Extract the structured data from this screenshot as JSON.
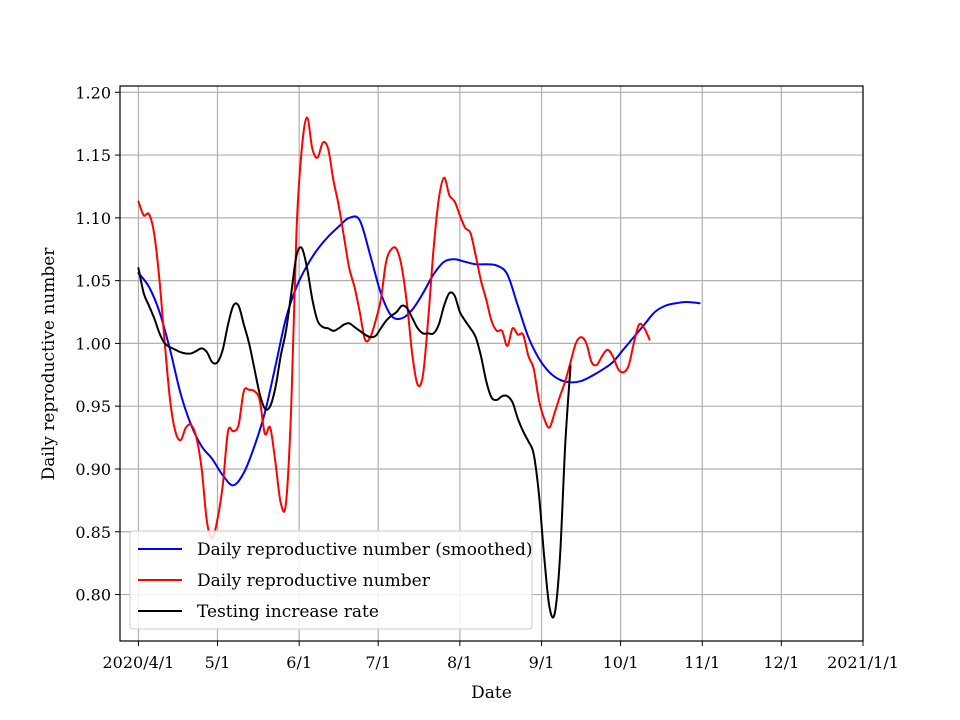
{
  "chart_data": {
    "type": "line",
    "title": "",
    "xlabel": "Date",
    "ylabel": "Daily reproductive number",
    "x_ticks": [
      {
        "date": "2020-04-01",
        "label": "2020/4/1"
      },
      {
        "date": "2020-05-01",
        "label": "5/1"
      },
      {
        "date": "2020-06-01",
        "label": "6/1"
      },
      {
        "date": "2020-07-01",
        "label": "7/1"
      },
      {
        "date": "2020-08-01",
        "label": "8/1"
      },
      {
        "date": "2020-09-01",
        "label": "9/1"
      },
      {
        "date": "2020-10-01",
        "label": "10/1"
      },
      {
        "date": "2020-11-01",
        "label": "11/1"
      },
      {
        "date": "2020-12-01",
        "label": "12/1"
      },
      {
        "date": "2021-01-01",
        "label": "2021/1/1"
      }
    ],
    "xlim": [
      "2020-03-25",
      "2021-01-01"
    ],
    "ylim": [
      0.763,
      1.205
    ],
    "y_ticks": [
      0.8,
      0.85,
      0.9,
      0.95,
      1.0,
      1.05,
      1.1,
      1.15,
      1.2
    ],
    "y_tick_labels": [
      "0.80",
      "0.85",
      "0.90",
      "0.95",
      "1.00",
      "1.05",
      "1.10",
      "1.15",
      "1.20"
    ],
    "grid": true,
    "legend_position": "lower-left",
    "series": [
      {
        "name": "Daily reproductive number (smoothed)",
        "color": "#0000ff",
        "points": [
          [
            "2020-04-01",
            1.056
          ],
          [
            "2020-04-05",
            1.045
          ],
          [
            "2020-04-09",
            1.025
          ],
          [
            "2020-04-13",
            0.995
          ],
          [
            "2020-04-17",
            0.96
          ],
          [
            "2020-04-21",
            0.935
          ],
          [
            "2020-04-25",
            0.918
          ],
          [
            "2020-04-29",
            0.908
          ],
          [
            "2020-05-03",
            0.895
          ],
          [
            "2020-05-07",
            0.887
          ],
          [
            "2020-05-11",
            0.897
          ],
          [
            "2020-05-15",
            0.918
          ],
          [
            "2020-05-19",
            0.945
          ],
          [
            "2020-05-23",
            0.982
          ],
          [
            "2020-05-27",
            1.02
          ],
          [
            "2020-05-31",
            1.045
          ],
          [
            "2020-06-04",
            1.062
          ],
          [
            "2020-06-08",
            1.075
          ],
          [
            "2020-06-12",
            1.085
          ],
          [
            "2020-06-16",
            1.093
          ],
          [
            "2020-06-20",
            1.1
          ],
          [
            "2020-06-24",
            1.098
          ],
          [
            "2020-06-28",
            1.07
          ],
          [
            "2020-07-02",
            1.04
          ],
          [
            "2020-07-06",
            1.022
          ],
          [
            "2020-07-10",
            1.02
          ],
          [
            "2020-07-14",
            1.027
          ],
          [
            "2020-07-18",
            1.04
          ],
          [
            "2020-07-22",
            1.055
          ],
          [
            "2020-07-26",
            1.065
          ],
          [
            "2020-07-30",
            1.067
          ],
          [
            "2020-08-03",
            1.065
          ],
          [
            "2020-08-07",
            1.063
          ],
          [
            "2020-08-11",
            1.063
          ],
          [
            "2020-08-15",
            1.062
          ],
          [
            "2020-08-19",
            1.055
          ],
          [
            "2020-08-23",
            1.03
          ],
          [
            "2020-08-27",
            1.005
          ],
          [
            "2020-08-31",
            0.988
          ],
          [
            "2020-09-04",
            0.977
          ],
          [
            "2020-09-08",
            0.971
          ],
          [
            "2020-09-12",
            0.969
          ],
          [
            "2020-09-16",
            0.97
          ],
          [
            "2020-09-20",
            0.974
          ],
          [
            "2020-09-24",
            0.979
          ],
          [
            "2020-09-28",
            0.985
          ],
          [
            "2020-10-02",
            0.995
          ],
          [
            "2020-10-06",
            1.005
          ],
          [
            "2020-10-10",
            1.015
          ],
          [
            "2020-10-14",
            1.025
          ],
          [
            "2020-10-18",
            1.03
          ],
          [
            "2020-10-22",
            1.032
          ],
          [
            "2020-10-26",
            1.033
          ],
          [
            "2020-10-31",
            1.032
          ]
        ]
      },
      {
        "name": "Daily reproductive number",
        "color": "#ff0000",
        "points": [
          [
            "2020-04-01",
            1.113
          ],
          [
            "2020-04-03",
            1.102
          ],
          [
            "2020-04-05",
            1.103
          ],
          [
            "2020-04-07",
            1.087
          ],
          [
            "2020-04-09",
            1.05
          ],
          [
            "2020-04-11",
            1.0
          ],
          [
            "2020-04-13",
            0.955
          ],
          [
            "2020-04-15",
            0.93
          ],
          [
            "2020-04-17",
            0.923
          ],
          [
            "2020-04-19",
            0.933
          ],
          [
            "2020-04-21",
            0.935
          ],
          [
            "2020-04-23",
            0.925
          ],
          [
            "2020-04-25",
            0.9
          ],
          [
            "2020-04-27",
            0.858
          ],
          [
            "2020-04-29",
            0.845
          ],
          [
            "2020-05-01",
            0.86
          ],
          [
            "2020-05-03",
            0.887
          ],
          [
            "2020-05-05",
            0.93
          ],
          [
            "2020-05-07",
            0.93
          ],
          [
            "2020-05-09",
            0.935
          ],
          [
            "2020-05-11",
            0.962
          ],
          [
            "2020-05-13",
            0.963
          ],
          [
            "2020-05-15",
            0.962
          ],
          [
            "2020-05-17",
            0.955
          ],
          [
            "2020-05-19",
            0.928
          ],
          [
            "2020-05-21",
            0.933
          ],
          [
            "2020-05-23",
            0.905
          ],
          [
            "2020-05-25",
            0.873
          ],
          [
            "2020-05-27",
            0.873
          ],
          [
            "2020-05-29",
            0.95
          ],
          [
            "2020-05-31",
            1.09
          ],
          [
            "2020-06-02",
            1.155
          ],
          [
            "2020-06-04",
            1.18
          ],
          [
            "2020-06-06",
            1.155
          ],
          [
            "2020-06-08",
            1.148
          ],
          [
            "2020-06-10",
            1.16
          ],
          [
            "2020-06-12",
            1.155
          ],
          [
            "2020-06-14",
            1.13
          ],
          [
            "2020-06-16",
            1.11
          ],
          [
            "2020-06-18",
            1.085
          ],
          [
            "2020-06-20",
            1.06
          ],
          [
            "2020-06-22",
            1.045
          ],
          [
            "2020-06-24",
            1.025
          ],
          [
            "2020-06-26",
            1.003
          ],
          [
            "2020-06-28",
            1.005
          ],
          [
            "2020-06-30",
            1.018
          ],
          [
            "2020-07-02",
            1.035
          ],
          [
            "2020-07-04",
            1.065
          ],
          [
            "2020-07-06",
            1.075
          ],
          [
            "2020-07-08",
            1.075
          ],
          [
            "2020-07-10",
            1.06
          ],
          [
            "2020-07-12",
            1.03
          ],
          [
            "2020-07-14",
            0.99
          ],
          [
            "2020-07-16",
            0.967
          ],
          [
            "2020-07-18",
            0.975
          ],
          [
            "2020-07-20",
            1.02
          ],
          [
            "2020-07-22",
            1.075
          ],
          [
            "2020-07-24",
            1.115
          ],
          [
            "2020-07-26",
            1.132
          ],
          [
            "2020-07-28",
            1.118
          ],
          [
            "2020-07-30",
            1.113
          ],
          [
            "2020-08-01",
            1.102
          ],
          [
            "2020-08-03",
            1.092
          ],
          [
            "2020-08-05",
            1.088
          ],
          [
            "2020-08-07",
            1.07
          ],
          [
            "2020-08-09",
            1.05
          ],
          [
            "2020-08-11",
            1.035
          ],
          [
            "2020-08-13",
            1.018
          ],
          [
            "2020-08-15",
            1.01
          ],
          [
            "2020-08-17",
            1.01
          ],
          [
            "2020-08-19",
            0.998
          ],
          [
            "2020-08-21",
            1.012
          ],
          [
            "2020-08-23",
            1.007
          ],
          [
            "2020-08-25",
            1.007
          ],
          [
            "2020-08-27",
            0.99
          ],
          [
            "2020-08-29",
            0.98
          ],
          [
            "2020-08-31",
            0.955
          ],
          [
            "2020-09-02",
            0.94
          ],
          [
            "2020-09-04",
            0.933
          ],
          [
            "2020-09-06",
            0.945
          ],
          [
            "2020-09-08",
            0.958
          ],
          [
            "2020-09-10",
            0.97
          ],
          [
            "2020-09-12",
            0.985
          ],
          [
            "2020-09-14",
            1.0
          ],
          [
            "2020-09-16",
            1.005
          ],
          [
            "2020-09-18",
            1.0
          ],
          [
            "2020-09-20",
            0.985
          ],
          [
            "2020-09-22",
            0.983
          ],
          [
            "2020-09-24",
            0.99
          ],
          [
            "2020-09-26",
            0.995
          ],
          [
            "2020-09-28",
            0.99
          ],
          [
            "2020-09-30",
            0.98
          ],
          [
            "2020-10-02",
            0.977
          ],
          [
            "2020-10-04",
            0.982
          ],
          [
            "2020-10-06",
            1.0
          ],
          [
            "2020-10-08",
            1.015
          ],
          [
            "2020-10-10",
            1.012
          ],
          [
            "2020-10-12",
            1.003
          ]
        ]
      },
      {
        "name": "Testing increase rate",
        "color": "#000000",
        "points": [
          [
            "2020-04-01",
            1.06
          ],
          [
            "2020-04-03",
            1.04
          ],
          [
            "2020-04-05",
            1.03
          ],
          [
            "2020-04-07",
            1.02
          ],
          [
            "2020-04-09",
            1.008
          ],
          [
            "2020-04-11",
            1.0
          ],
          [
            "2020-04-13",
            0.997
          ],
          [
            "2020-04-15",
            0.995
          ],
          [
            "2020-04-17",
            0.993
          ],
          [
            "2020-04-19",
            0.992
          ],
          [
            "2020-04-21",
            0.992
          ],
          [
            "2020-04-23",
            0.994
          ],
          [
            "2020-04-25",
            0.996
          ],
          [
            "2020-04-27",
            0.993
          ],
          [
            "2020-04-29",
            0.985
          ],
          [
            "2020-05-01",
            0.985
          ],
          [
            "2020-05-03",
            0.995
          ],
          [
            "2020-05-05",
            1.015
          ],
          [
            "2020-05-07",
            1.03
          ],
          [
            "2020-05-09",
            1.03
          ],
          [
            "2020-05-11",
            1.015
          ],
          [
            "2020-05-13",
            1.0
          ],
          [
            "2020-05-15",
            0.98
          ],
          [
            "2020-05-17",
            0.96
          ],
          [
            "2020-05-19",
            0.948
          ],
          [
            "2020-05-21",
            0.95
          ],
          [
            "2020-05-23",
            0.965
          ],
          [
            "2020-05-25",
            0.99
          ],
          [
            "2020-05-27",
            1.01
          ],
          [
            "2020-05-29",
            1.04
          ],
          [
            "2020-05-31",
            1.07
          ],
          [
            "2020-06-02",
            1.076
          ],
          [
            "2020-06-04",
            1.06
          ],
          [
            "2020-06-06",
            1.035
          ],
          [
            "2020-06-08",
            1.018
          ],
          [
            "2020-06-10",
            1.013
          ],
          [
            "2020-06-12",
            1.012
          ],
          [
            "2020-06-14",
            1.01
          ],
          [
            "2020-06-16",
            1.012
          ],
          [
            "2020-06-18",
            1.015
          ],
          [
            "2020-06-20",
            1.016
          ],
          [
            "2020-06-22",
            1.013
          ],
          [
            "2020-06-24",
            1.01
          ],
          [
            "2020-06-26",
            1.007
          ],
          [
            "2020-06-28",
            1.005
          ],
          [
            "2020-06-30",
            1.006
          ],
          [
            "2020-07-02",
            1.012
          ],
          [
            "2020-07-04",
            1.018
          ],
          [
            "2020-07-06",
            1.022
          ],
          [
            "2020-07-08",
            1.025
          ],
          [
            "2020-07-10",
            1.03
          ],
          [
            "2020-07-12",
            1.028
          ],
          [
            "2020-07-14",
            1.02
          ],
          [
            "2020-07-16",
            1.012
          ],
          [
            "2020-07-18",
            1.008
          ],
          [
            "2020-07-20",
            1.008
          ],
          [
            "2020-07-22",
            1.008
          ],
          [
            "2020-07-24",
            1.015
          ],
          [
            "2020-07-26",
            1.03
          ],
          [
            "2020-07-28",
            1.04
          ],
          [
            "2020-07-30",
            1.038
          ],
          [
            "2020-08-01",
            1.025
          ],
          [
            "2020-08-03",
            1.018
          ],
          [
            "2020-08-05",
            1.012
          ],
          [
            "2020-08-07",
            1.005
          ],
          [
            "2020-08-09",
            0.99
          ],
          [
            "2020-08-11",
            0.97
          ],
          [
            "2020-08-13",
            0.957
          ],
          [
            "2020-08-15",
            0.955
          ],
          [
            "2020-08-17",
            0.958
          ],
          [
            "2020-08-19",
            0.958
          ],
          [
            "2020-08-21",
            0.953
          ],
          [
            "2020-08-23",
            0.94
          ],
          [
            "2020-08-25",
            0.93
          ],
          [
            "2020-08-27",
            0.922
          ],
          [
            "2020-08-29",
            0.912
          ],
          [
            "2020-08-31",
            0.88
          ],
          [
            "2020-09-02",
            0.83
          ],
          [
            "2020-09-04",
            0.79
          ],
          [
            "2020-09-06",
            0.785
          ],
          [
            "2020-09-08",
            0.83
          ],
          [
            "2020-09-10",
            0.92
          ],
          [
            "2020-09-12",
            0.982
          ]
        ]
      }
    ]
  }
}
